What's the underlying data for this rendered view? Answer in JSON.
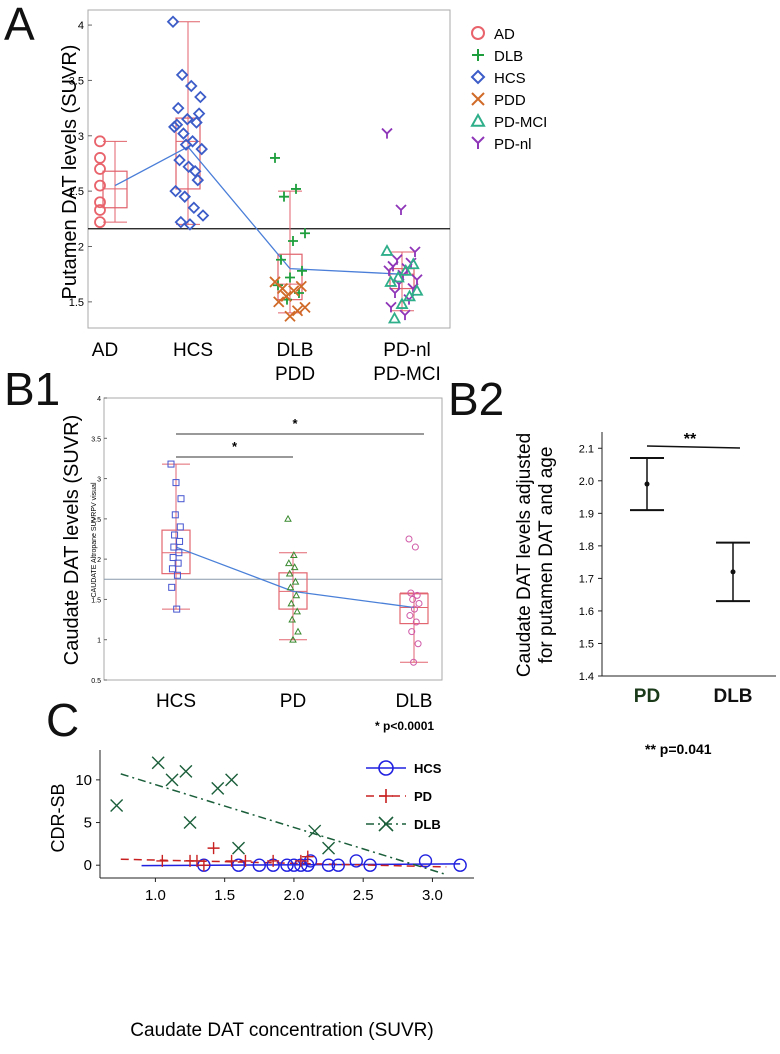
{
  "panel_labels": {
    "a": "A",
    "b1": "B1",
    "b2": "B2",
    "c": "C"
  },
  "colors": {
    "AD": "#e8636b",
    "DLB": "#1e9e3c",
    "HCS": "#3c5cc8",
    "PDD": "#d06a28",
    "PD-MCI": "#2fae8a",
    "PD-nl": "#8e35b8",
    "box_red": "#e0626c",
    "trend_blue": "#4a7ed8",
    "ref_line": "#111111",
    "b1_hcs": "#4555d0",
    "b1_pd": "#3a8a30",
    "b1_dlb": "#d05aa8",
    "b1_box": "#e26670",
    "b1_trend": "#4a80d8",
    "b1_ref": "#8899aa",
    "c_hcs": "#2020e0",
    "c_pd": "#c82020",
    "c_dlb": "#1a5e3a"
  },
  "chart_data": [
    {
      "id": "A",
      "type": "scatter",
      "ylabel": "Putamen DAT levels (SUVR)",
      "ylim": [
        1.3,
        4.1
      ],
      "yticks": [
        "1.5",
        "2",
        "2.5",
        "3",
        "3.5",
        "4"
      ],
      "reference_line": 2.16,
      "groups": [
        {
          "label": "AD",
          "pos": 0,
          "line2": ""
        },
        {
          "label": "HCS",
          "pos": 1,
          "line2": ""
        },
        {
          "label": "DLB",
          "pos": 2,
          "line2": "PDD"
        },
        {
          "label": "PD-nl",
          "pos": 3,
          "line2": "PD-MCI"
        }
      ],
      "legend": [
        {
          "name": "AD",
          "marker": "circle"
        },
        {
          "name": "DLB",
          "marker": "plus"
        },
        {
          "name": "HCS",
          "marker": "diamond"
        },
        {
          "name": "PDD",
          "marker": "x"
        },
        {
          "name": "PD-MCI",
          "marker": "triangle"
        },
        {
          "name": "PD-nl",
          "marker": "y"
        }
      ],
      "boxes": [
        {
          "pos": 0,
          "q1": 2.35,
          "median": 2.52,
          "q3": 2.68,
          "min": 2.22,
          "max": 2.95
        },
        {
          "pos": 1,
          "q1": 2.52,
          "median": 2.95,
          "q3": 3.16,
          "min": 2.2,
          "max": 4.03
        },
        {
          "pos": 2,
          "q1": 1.52,
          "median": 1.66,
          "q3": 1.93,
          "min": 1.4,
          "max": 2.5
        },
        {
          "pos": 3,
          "q1": 1.62,
          "median": 1.75,
          "q3": 1.8,
          "min": 1.42,
          "max": 1.95
        }
      ],
      "trend": [
        2.55,
        2.9,
        1.8,
        1.75
      ],
      "series": [
        {
          "name": "AD",
          "marker": "circle",
          "points": [
            [
              0,
              2.95
            ],
            [
              0,
              2.8
            ],
            [
              0,
              2.7
            ],
            [
              0,
              2.55
            ],
            [
              0,
              2.4
            ],
            [
              0,
              2.33
            ],
            [
              0,
              2.22
            ]
          ]
        },
        {
          "name": "HCS",
          "marker": "diamond",
          "points": [
            [
              1,
              4.03
            ],
            [
              1,
              3.55
            ],
            [
              1,
              3.45
            ],
            [
              1,
              3.35
            ],
            [
              1,
              3.25
            ],
            [
              1,
              3.15
            ],
            [
              1,
              3.12
            ],
            [
              1,
              3.08
            ],
            [
              1,
              3.02
            ],
            [
              1,
              2.95
            ],
            [
              1,
              2.88
            ],
            [
              1,
              2.78
            ],
            [
              1,
              2.72
            ],
            [
              1,
              2.6
            ],
            [
              1,
              2.5
            ],
            [
              1,
              2.45
            ],
            [
              1,
              2.35
            ],
            [
              1,
              2.28
            ],
            [
              1,
              2.22
            ],
            [
              1,
              2.2
            ],
            [
              1,
              3.2
            ],
            [
              1,
              3.1
            ],
            [
              1,
              2.92
            ],
            [
              1,
              2.68
            ]
          ]
        },
        {
          "name": "DLB",
          "marker": "plus",
          "points": [
            [
              2,
              2.8
            ],
            [
              2,
              2.52
            ],
            [
              2,
              2.45
            ],
            [
              2,
              2.12
            ],
            [
              2,
              2.05
            ],
            [
              2,
              1.88
            ],
            [
              2,
              1.78
            ],
            [
              2,
              1.72
            ],
            [
              2,
              1.65
            ],
            [
              2,
              1.58
            ],
            [
              2,
              1.52
            ]
          ]
        },
        {
          "name": "PDD",
          "marker": "x",
          "points": [
            [
              2,
              1.68
            ],
            [
              2,
              1.64
            ],
            [
              2,
              1.6
            ],
            [
              2,
              1.55
            ],
            [
              2,
              1.5
            ],
            [
              2,
              1.45
            ],
            [
              2,
              1.42
            ],
            [
              2,
              1.37
            ],
            [
              2,
              1.62
            ]
          ]
        },
        {
          "name": "PD-nl",
          "marker": "y",
          "points": [
            [
              3,
              3.02
            ],
            [
              3,
              2.33
            ],
            [
              3,
              1.95
            ],
            [
              3,
              1.88
            ],
            [
              3,
              1.85
            ],
            [
              3,
              1.82
            ],
            [
              3,
              1.8
            ],
            [
              3,
              1.78
            ],
            [
              3,
              1.74
            ],
            [
              3,
              1.7
            ],
            [
              3,
              1.66
            ],
            [
              3,
              1.62
            ],
            [
              3,
              1.58
            ],
            [
              3,
              1.52
            ],
            [
              3,
              1.45
            ],
            [
              3,
              1.38
            ]
          ]
        },
        {
          "name": "PD-MCI",
          "marker": "triangle",
          "points": [
            [
              3,
              1.96
            ],
            [
              3,
              1.84
            ],
            [
              3,
              1.78
            ],
            [
              3,
              1.72
            ],
            [
              3,
              1.68
            ],
            [
              3,
              1.6
            ],
            [
              3,
              1.55
            ],
            [
              3,
              1.48
            ],
            [
              3,
              1.35
            ]
          ]
        }
      ]
    },
    {
      "id": "B1",
      "type": "scatter",
      "ylabel": "Caudate DAT levels (SUVR)",
      "inner_ylabel": "CAUDATE Altropane SUVRPV visual",
      "ylim": [
        0.5,
        4.0
      ],
      "yticks": [
        "0.5",
        "1",
        "1.5",
        "2",
        "2.5",
        "3",
        "3.5",
        "4"
      ],
      "categories": [
        "HCS",
        "PD",
        "DLB"
      ],
      "reference_line": 1.75,
      "boxes": [
        {
          "pos": 0,
          "q1": 1.82,
          "median": 2.08,
          "q3": 2.36,
          "min": 1.38,
          "max": 3.18
        },
        {
          "pos": 1,
          "q1": 1.38,
          "median": 1.6,
          "q3": 1.83,
          "min": 1.0,
          "max": 2.08
        },
        {
          "pos": 2,
          "q1": 1.2,
          "median": 1.4,
          "q3": 1.57,
          "min": 0.72,
          "max": 1.58
        }
      ],
      "trend": [
        2.15,
        1.6,
        1.4
      ],
      "series": [
        {
          "name": "HCS",
          "marker": "square",
          "points": [
            [
              0,
              3.18
            ],
            [
              0,
              2.95
            ],
            [
              0,
              2.75
            ],
            [
              0,
              2.55
            ],
            [
              0,
              2.4
            ],
            [
              0,
              2.3
            ],
            [
              0,
              2.22
            ],
            [
              0,
              2.15
            ],
            [
              0,
              2.08
            ],
            [
              0,
              2.02
            ],
            [
              0,
              1.95
            ],
            [
              0,
              1.88
            ],
            [
              0,
              1.8
            ],
            [
              0,
              1.65
            ],
            [
              0,
              1.38
            ]
          ]
        },
        {
          "name": "PD",
          "marker": "triangle",
          "points": [
            [
              1,
              2.5
            ],
            [
              1,
              2.05
            ],
            [
              1,
              1.95
            ],
            [
              1,
              1.9
            ],
            [
              1,
              1.82
            ],
            [
              1,
              1.72
            ],
            [
              1,
              1.65
            ],
            [
              1,
              1.55
            ],
            [
              1,
              1.45
            ],
            [
              1,
              1.35
            ],
            [
              1,
              1.25
            ],
            [
              1,
              1.1
            ],
            [
              1,
              1.0
            ]
          ]
        },
        {
          "name": "DLB",
          "marker": "circle",
          "points": [
            [
              2,
              2.25
            ],
            [
              2,
              2.15
            ],
            [
              2,
              1.58
            ],
            [
              2,
              1.55
            ],
            [
              2,
              1.5
            ],
            [
              2,
              1.45
            ],
            [
              2,
              1.38
            ],
            [
              2,
              1.3
            ],
            [
              2,
              1.22
            ],
            [
              2,
              1.1
            ],
            [
              2,
              0.95
            ],
            [
              2,
              0.72
            ]
          ]
        }
      ],
      "significance": [
        {
          "from": 0,
          "to": 1,
          "label": "*"
        },
        {
          "from": 0,
          "to": 2,
          "label": "*"
        }
      ],
      "footnote": "* p<0.0001"
    },
    {
      "id": "B2",
      "type": "errorbar",
      "ylabel_line1": "Caudate DAT levels adjusted",
      "ylabel_line2": "for putamen DAT and age",
      "ylim": [
        1.4,
        2.15
      ],
      "yticks": [
        "1.4",
        "1.5",
        "1.6",
        "1.7",
        "1.8",
        "1.9",
        "2.0",
        "2.1"
      ],
      "categories": [
        "PD",
        "DLB"
      ],
      "means": [
        1.99,
        1.72
      ],
      "lower": [
        1.91,
        1.63
      ],
      "upper": [
        2.07,
        1.81
      ],
      "significance": "**",
      "footnote": "** p=0.041"
    },
    {
      "id": "C",
      "type": "scatter",
      "xlabel": "Caudate DAT concentration (SUVR)",
      "ylabel": "CDR-SB",
      "xlim": [
        0.6,
        3.3
      ],
      "ylim": [
        -1.5,
        13.5
      ],
      "xticks": [
        "1.0",
        "1.5",
        "2.0",
        "2.5",
        "3.0"
      ],
      "yticks": [
        "0",
        "5",
        "10"
      ],
      "legend": [
        {
          "name": "HCS",
          "marker": "circle",
          "line": "solid"
        },
        {
          "name": "PD",
          "marker": "plus",
          "line": "dashed"
        },
        {
          "name": "DLB",
          "marker": "x",
          "line": "dashdot"
        }
      ],
      "series": [
        {
          "name": "HCS",
          "marker": "circle",
          "fit": [
            [
              0.9,
              -0.05
            ],
            [
              3.2,
              0.15
            ]
          ],
          "points": [
            [
              1.35,
              0
            ],
            [
              1.6,
              0
            ],
            [
              1.75,
              0
            ],
            [
              1.85,
              0
            ],
            [
              1.95,
              0
            ],
            [
              2.0,
              0
            ],
            [
              2.05,
              0
            ],
            [
              2.1,
              0
            ],
            [
              2.12,
              0.5
            ],
            [
              2.25,
              0
            ],
            [
              2.32,
              0
            ],
            [
              2.45,
              0.5
            ],
            [
              2.55,
              0
            ],
            [
              2.95,
              0.5
            ],
            [
              3.2,
              0
            ]
          ]
        },
        {
          "name": "PD",
          "marker": "plus",
          "fit": [
            [
              0.75,
              0.7
            ],
            [
              3.1,
              -0.2
            ]
          ],
          "points": [
            [
              1.05,
              0.5
            ],
            [
              1.3,
              0.5
            ],
            [
              1.42,
              2
            ],
            [
              1.55,
              0.5
            ],
            [
              1.65,
              0.5
            ],
            [
              1.85,
              0.5
            ],
            [
              2.05,
              0.5
            ],
            [
              2.1,
              1
            ],
            [
              1.35,
              0
            ],
            [
              1.25,
              0.5
            ]
          ]
        },
        {
          "name": "DLB",
          "marker": "x",
          "fit": [
            [
              0.75,
              10.7
            ],
            [
              3.1,
              -1.1
            ]
          ],
          "points": [
            [
              0.72,
              7
            ],
            [
              1.02,
              12
            ],
            [
              1.12,
              10
            ],
            [
              1.22,
              11
            ],
            [
              1.45,
              9
            ],
            [
              1.55,
              10
            ],
            [
              1.25,
              5
            ],
            [
              1.6,
              2
            ],
            [
              2.15,
              4
            ],
            [
              2.25,
              2
            ]
          ]
        }
      ]
    }
  ]
}
